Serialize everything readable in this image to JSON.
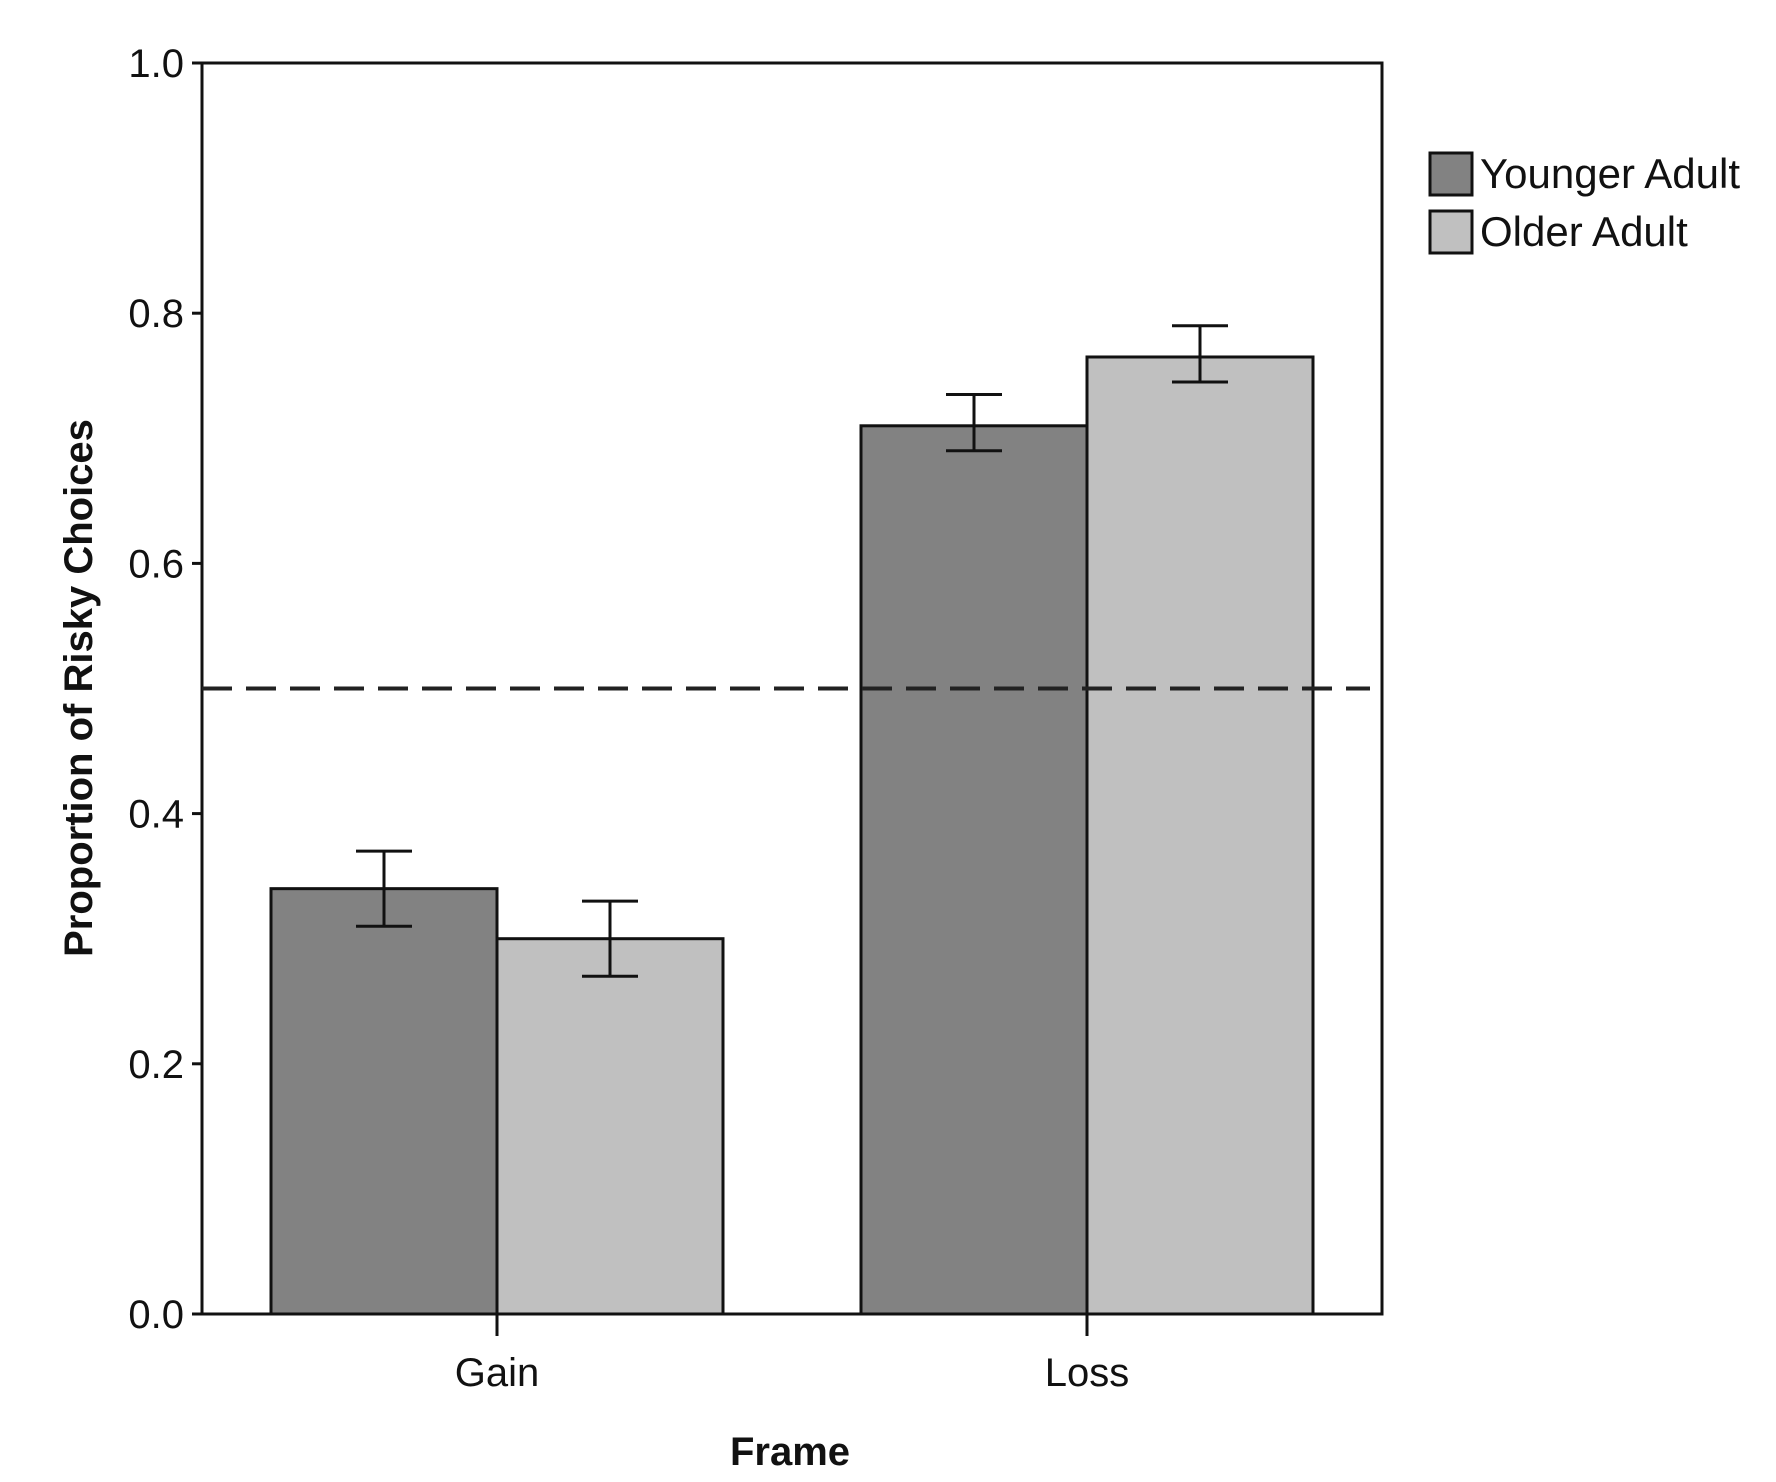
{
  "chart_data": {
    "type": "bar",
    "categories": [
      "Gain",
      "Loss"
    ],
    "series": [
      {
        "name": "Younger Adult",
        "color": "#828282",
        "values": [
          0.34,
          0.71
        ],
        "error_low": [
          0.31,
          0.69
        ],
        "error_high": [
          0.37,
          0.735
        ]
      },
      {
        "name": "Older Adult",
        "color": "#c0c0c0",
        "values": [
          0.3,
          0.765
        ],
        "error_low": [
          0.27,
          0.745
        ],
        "error_high": [
          0.33,
          0.79
        ]
      }
    ],
    "xlabel": "Frame",
    "ylabel": "Proportion of Risky Choices",
    "ylim": [
      0.0,
      1.0
    ],
    "yticks": [
      "0.0",
      "0.2",
      "0.4",
      "0.6",
      "0.8",
      "1.0"
    ],
    "reference_line": {
      "y": 0.5,
      "style": "dashed"
    },
    "grid": false,
    "legend_position": "top-right"
  }
}
